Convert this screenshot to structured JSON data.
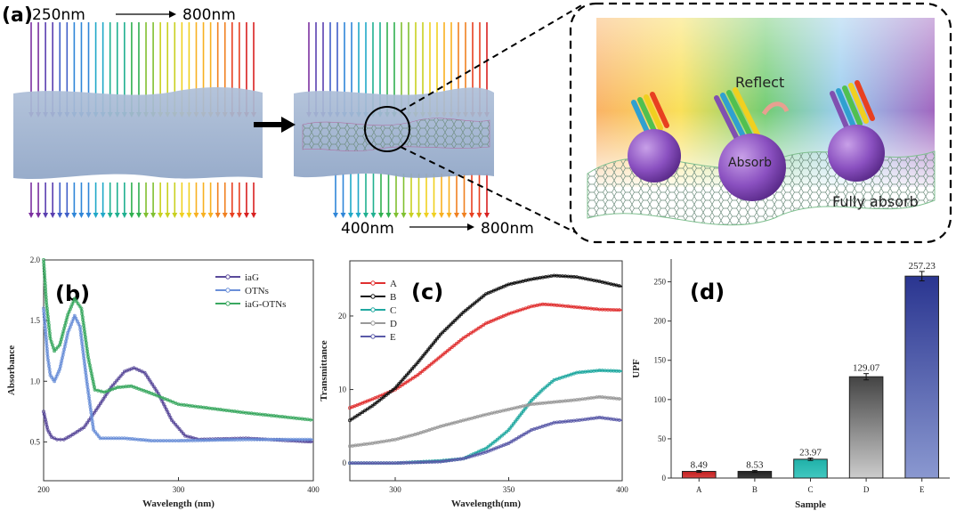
{
  "panel_a": {
    "label": "(a)",
    "top_range_start": "250nm",
    "top_range_end": "800nm",
    "bottom_range_start": "400nm",
    "bottom_range_end": "800nm",
    "reflect": "Reflect",
    "absorb": "Absorb",
    "fully_absorb": "Fully absorb",
    "spectrum_colors": [
      "#7b2fa0",
      "#5a3fb0",
      "#3f5fc8",
      "#2f86d8",
      "#20a8c8",
      "#20b090",
      "#30b050",
      "#80c030",
      "#c8d020",
      "#f0d020",
      "#f8b020",
      "#f08020",
      "#e84020",
      "#d82020"
    ]
  },
  "chart_data": [
    {
      "type": "line",
      "panel_label": "(b)",
      "title": "",
      "xlabel": "Wavelength (nm)",
      "ylabel": "Absorbance",
      "xlim": [
        200,
        400
      ],
      "ylim": [
        0.18,
        2.0
      ],
      "xticks": [
        "200",
        "300",
        "400"
      ],
      "yticks": [
        "0.5",
        "1.0",
        "1.5",
        "2.0"
      ],
      "legend_position": "top-right",
      "series": [
        {
          "name": "iaG",
          "color": "#5a4a9a",
          "x": [
            200,
            203,
            206,
            210,
            215,
            220,
            230,
            240,
            250,
            260,
            267,
            275,
            285,
            295,
            305,
            315,
            350,
            400
          ],
          "y": [
            0.75,
            0.6,
            0.54,
            0.52,
            0.52,
            0.55,
            0.62,
            0.78,
            0.95,
            1.08,
            1.11,
            1.07,
            0.9,
            0.68,
            0.55,
            0.52,
            0.53,
            0.5
          ]
        },
        {
          "name": "OTNs",
          "color": "#6a8fd8",
          "x": [
            200,
            203,
            205,
            208,
            212,
            218,
            223,
            227,
            232,
            237,
            242,
            260,
            280,
            300,
            350,
            400
          ],
          "y": [
            1.6,
            1.2,
            1.05,
            1.0,
            1.1,
            1.4,
            1.54,
            1.45,
            1.0,
            0.6,
            0.53,
            0.53,
            0.51,
            0.51,
            0.52,
            0.52
          ]
        },
        {
          "name": "iaG-OTNs",
          "color": "#3aa860",
          "x": [
            200,
            202,
            205,
            208,
            212,
            218,
            223,
            228,
            233,
            238,
            245,
            255,
            265,
            280,
            300,
            350,
            400
          ],
          "y": [
            2.0,
            1.65,
            1.35,
            1.25,
            1.3,
            1.55,
            1.68,
            1.6,
            1.2,
            0.93,
            0.91,
            0.95,
            0.96,
            0.9,
            0.81,
            0.74,
            0.68
          ]
        }
      ]
    },
    {
      "type": "line",
      "panel_label": "(c)",
      "title": "",
      "xlabel": "Wavelength(nm)",
      "ylabel": "Transmittance",
      "xlim": [
        280,
        400
      ],
      "ylim": [
        -2.4,
        27.5
      ],
      "xticks": [
        "300",
        "350",
        "400"
      ],
      "yticks": [
        "0",
        "10",
        "20"
      ],
      "legend_position": "top-left",
      "series": [
        {
          "name": "A",
          "color": "#e03030",
          "x": [
            280,
            290,
            300,
            310,
            320,
            330,
            340,
            350,
            360,
            365,
            370,
            380,
            390,
            400
          ],
          "y": [
            7.5,
            8.7,
            10,
            12,
            14.5,
            17,
            19,
            20.3,
            21.3,
            21.6,
            21.5,
            21.2,
            20.9,
            20.8
          ]
        },
        {
          "name": "B",
          "color": "#111111",
          "x": [
            280,
            290,
            300,
            310,
            320,
            330,
            340,
            350,
            360,
            370,
            380,
            390,
            400
          ],
          "y": [
            5.8,
            7.8,
            10.2,
            13.7,
            17.5,
            20.5,
            23,
            24.3,
            25,
            25.5,
            25.3,
            24.7,
            24
          ]
        },
        {
          "name": "C",
          "color": "#20a8a0",
          "x": [
            280,
            300,
            320,
            330,
            340,
            345,
            350,
            355,
            360,
            365,
            370,
            380,
            390,
            400
          ],
          "y": [
            0,
            0,
            0.3,
            0.6,
            2,
            3.2,
            4.5,
            6.5,
            8.5,
            10,
            11.3,
            12.3,
            12.6,
            12.5
          ]
        },
        {
          "name": "D",
          "color": "#999999",
          "x": [
            280,
            290,
            300,
            310,
            320,
            330,
            340,
            350,
            360,
            370,
            380,
            390,
            400
          ],
          "y": [
            2.3,
            2.7,
            3.2,
            4,
            5,
            5.8,
            6.6,
            7.3,
            8,
            8.3,
            8.6,
            9,
            8.7
          ]
        },
        {
          "name": "E",
          "color": "#5a5aa8",
          "x": [
            280,
            300,
            320,
            330,
            340,
            350,
            360,
            370,
            380,
            390,
            400
          ],
          "y": [
            0,
            0,
            0.2,
            0.6,
            1.5,
            2.7,
            4.5,
            5.5,
            5.8,
            6.2,
            5.8
          ]
        }
      ]
    },
    {
      "type": "bar",
      "panel_label": "(d)",
      "title": "",
      "xlabel": "Sample",
      "ylabel": "UPF",
      "ylim": [
        0,
        279
      ],
      "yticks": [
        "0",
        "50",
        "100",
        "150",
        "200",
        "250"
      ],
      "categories": [
        "A",
        "B",
        "C",
        "D",
        "E"
      ],
      "values": [
        8.49,
        8.53,
        23.97,
        129.07,
        257.23
      ],
      "value_labels": [
        "8.49",
        "8.53",
        "23.97",
        "129.07",
        "257.23"
      ],
      "errors": [
        1.2,
        1.2,
        1.5,
        4,
        6
      ],
      "colors_top": [
        "#c02020",
        "#222222",
        "#20b0a8",
        "#444444",
        "#2a3590"
      ],
      "colors_bottom": [
        "#d84040",
        "#3a3a3a",
        "#40c8c0",
        "#cccccc",
        "#8a98d0"
      ]
    }
  ]
}
